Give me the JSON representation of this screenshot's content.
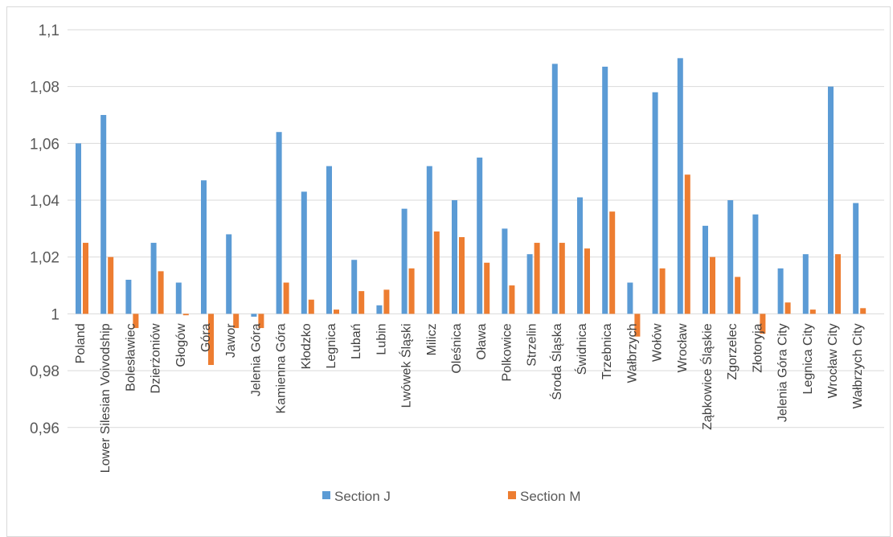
{
  "chart_data": {
    "type": "bar",
    "title": "",
    "xlabel": "",
    "ylabel": "",
    "ylim": [
      0.94,
      1.1
    ],
    "y_ticks": [
      "0,96",
      "0,98",
      "1",
      "1,02",
      "1,04",
      "1,06",
      "1,08",
      "1,1"
    ],
    "grid": true,
    "legend_position": "bottom",
    "categories": [
      "Poland",
      "Lower Silesian Voivodship",
      "Bolesławiec",
      "Dzierżoniów",
      "Głogów",
      "Góra",
      "Jawor",
      "Jelenia Góra",
      "Kamienna Góra",
      "Kłodzko",
      "Legnica",
      "Lubań",
      "Lubin",
      "Lwówek Śląski",
      "Milicz",
      "Oleśnica",
      "Oława",
      "Polkowice",
      "Strzelin",
      "Środa Śląska",
      "Świdnica",
      "Trzebnica",
      "Wałbrzych",
      "Wołów",
      "Wrocław",
      "Ząbkowice Śląskie",
      "Zgorzelec",
      "Złotoryja",
      "Jelenia Góra City",
      "Legnica City",
      "Wrocław City",
      "Wałbrzych City"
    ],
    "series": [
      {
        "name": "Section J",
        "color": "#5b9bd5",
        "values": [
          1.06,
          1.07,
          1.012,
          1.025,
          1.011,
          1.047,
          1.028,
          0.999,
          1.064,
          1.043,
          1.052,
          1.019,
          1.003,
          1.037,
          1.052,
          1.04,
          1.055,
          1.03,
          1.021,
          1.088,
          1.041,
          1.087,
          1.011,
          1.078,
          1.09,
          1.031,
          1.04,
          1.035,
          1.016,
          1.021,
          1.08,
          1.039
        ]
      },
      {
        "name": "Section M",
        "color": "#ed7d31",
        "values": [
          1.025,
          1.02,
          0.995,
          1.015,
          0.9995,
          0.982,
          0.995,
          0.995,
          1.011,
          1.005,
          1.0015,
          1.008,
          1.0085,
          1.016,
          1.029,
          1.027,
          1.018,
          1.01,
          1.025,
          1.025,
          1.023,
          1.036,
          0.992,
          1.016,
          1.049,
          1.02,
          1.013,
          0.993,
          1.004,
          1.0015,
          1.021,
          1.002
        ]
      }
    ]
  }
}
